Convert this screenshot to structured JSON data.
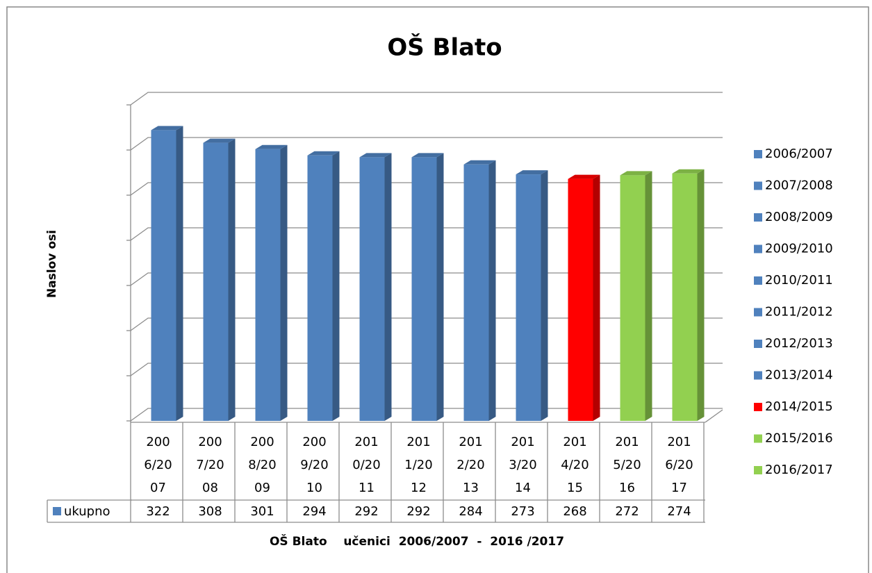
{
  "chart_data": {
    "type": "bar",
    "title": "OŠ Blato",
    "y_axis_label": "Naslov osi",
    "x_axis_label": "OŠ Blato    učenici  2006/2007  -  2016 /2017",
    "categories": [
      "2006/2007",
      "2007/2008",
      "2008/2009",
      "2009/2010",
      "2010/2011",
      "2011/2012",
      "2012/2013",
      "2013/2014",
      "2014/2015",
      "2015/2016",
      "2016/2017"
    ],
    "series": [
      {
        "name": "ukupno",
        "values": [
          322,
          308,
          301,
          294,
          292,
          292,
          284,
          273,
          268,
          272,
          274
        ],
        "colors": [
          "#4f81bd",
          "#4f81bd",
          "#4f81bd",
          "#4f81bd",
          "#4f81bd",
          "#4f81bd",
          "#4f81bd",
          "#4f81bd",
          "#ff0000",
          "#92d050",
          "#92d050"
        ]
      }
    ],
    "ylim": [
      0,
      350
    ],
    "yticks": [
      0,
      50,
      100,
      150,
      200,
      250,
      300,
      350
    ],
    "grid": true,
    "legend": "right",
    "data_table": true
  }
}
